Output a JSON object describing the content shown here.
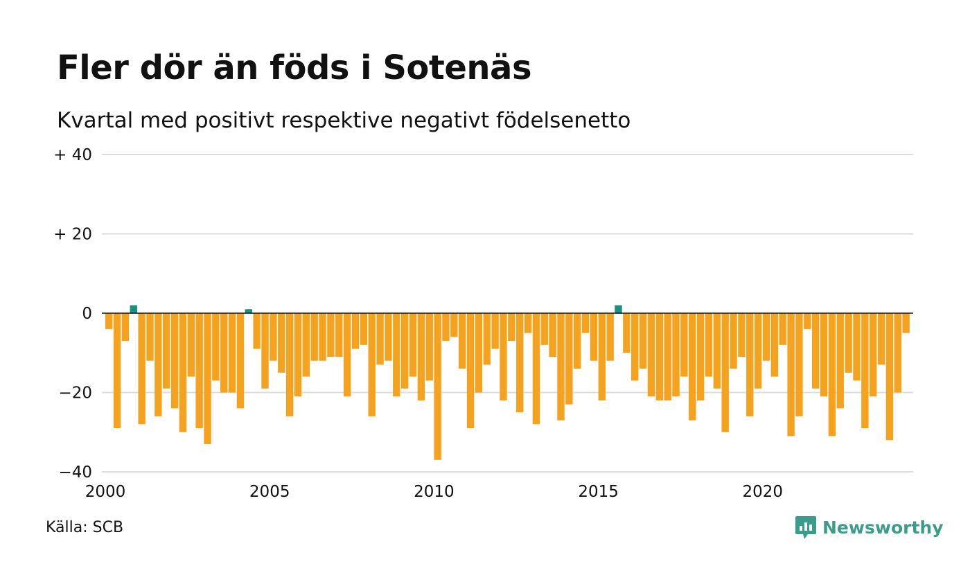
{
  "chart_data": {
    "type": "bar",
    "title": "Fler dör än föds i Sotenäs",
    "subtitle": "Kvartal med positivt respektive negativt födelsenetto",
    "xlabel": "",
    "ylabel": "",
    "start": "2000 Q1",
    "frequency": "quarter",
    "ylim": [
      -40,
      40
    ],
    "yticks": [
      40,
      20,
      0,
      -20,
      -40
    ],
    "ytick_labels": [
      "+ 40",
      "+ 20",
      "0",
      "−20",
      "−40"
    ],
    "xticks": [
      2000,
      2005,
      2010,
      2015,
      2020
    ],
    "grid": true,
    "colors": {
      "positive": "#1a9080",
      "negative": "#f5a21f"
    },
    "values": [
      -4,
      -29,
      -7,
      2,
      -28,
      -12,
      -26,
      -19,
      -24,
      -30,
      -16,
      -29,
      -33,
      -17,
      -20,
      -20,
      -24,
      1,
      -9,
      -19,
      -12,
      -15,
      -26,
      -21,
      -16,
      -12,
      -12,
      -11,
      -11,
      -21,
      -9,
      -8,
      -26,
      -13,
      -12,
      -21,
      -19,
      -16,
      -22,
      -17,
      -37,
      -7,
      -6,
      -14,
      -29,
      -20,
      -13,
      -9,
      -22,
      -7,
      -25,
      -5,
      -28,
      -8,
      -11,
      -27,
      -23,
      -14,
      -5,
      -12,
      -22,
      -12,
      2,
      -10,
      -17,
      -14,
      -21,
      -22,
      -22,
      -21,
      -16,
      -27,
      -22,
      -16,
      -19,
      -30,
      -14,
      -11,
      -26,
      -19,
      -12,
      -16,
      -8,
      -31,
      -26,
      -4,
      -19,
      -21,
      -31,
      -24,
      -15,
      -17,
      -29,
      -21,
      -13,
      -32,
      -20,
      -5
    ]
  },
  "footer": {
    "source": "Källa: SCB",
    "brand": "Newsworthy"
  }
}
